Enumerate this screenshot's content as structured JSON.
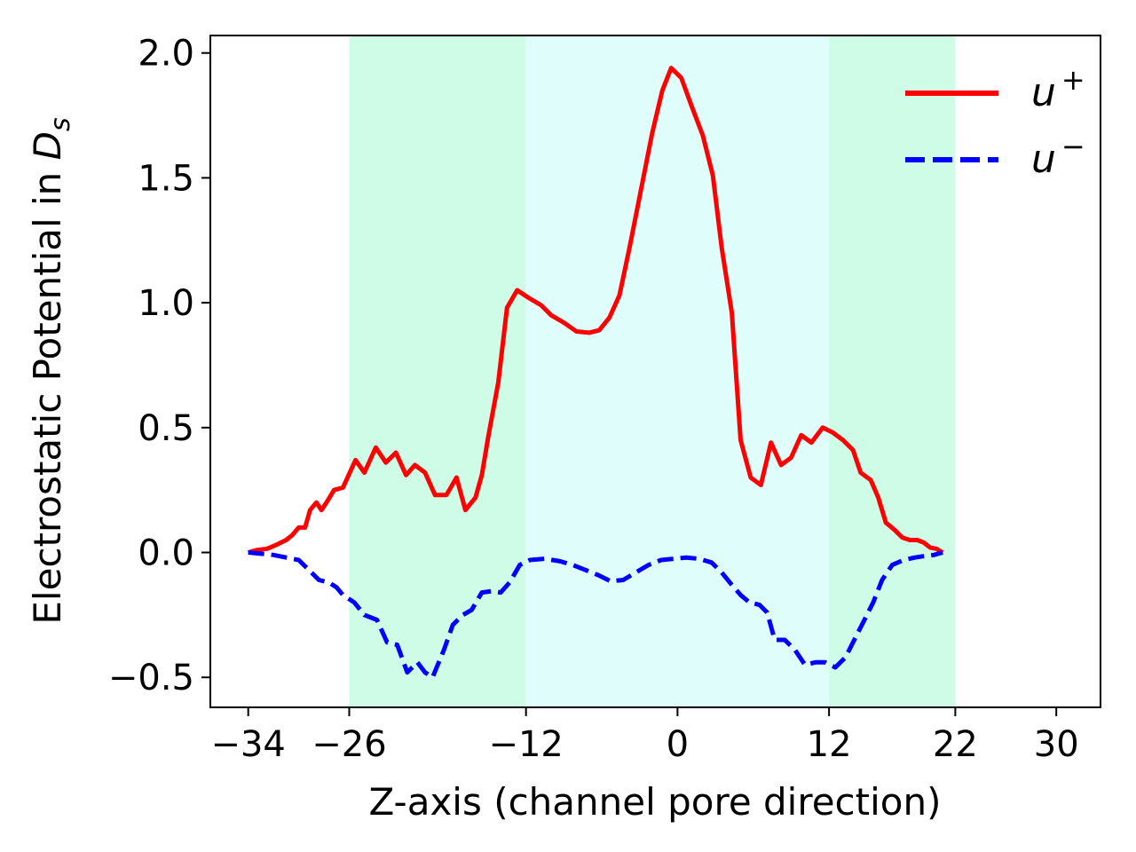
{
  "chart_data": {
    "type": "line",
    "title": "",
    "xlabel": "Z-axis (channel pore direction)",
    "ylabel_main": "Electrostatic Potential in ",
    "ylabel_symbol": "D",
    "ylabel_sub": "s",
    "xlim": [
      -37,
      33.5
    ],
    "ylim": [
      -0.62,
      2.07
    ],
    "xticks": [
      -34,
      -26,
      -12,
      0,
      12,
      22,
      30
    ],
    "xtick_labels": [
      "−34",
      "−26",
      "−12",
      "0",
      "12",
      "22",
      "30"
    ],
    "yticks": [
      -0.5,
      0.0,
      0.5,
      1.0,
      1.5,
      2.0
    ],
    "ytick_labels": [
      "−0.5",
      "0.0",
      "0.5",
      "1.0",
      "1.5",
      "2.0"
    ],
    "grid": false,
    "legend_position": "top-right",
    "regions": [
      {
        "x0": -26,
        "x1": -12,
        "color": "#cefce6"
      },
      {
        "x0": -12,
        "x1": 12,
        "color": "#dffefb"
      },
      {
        "x0": 12,
        "x1": 22,
        "color": "#cefce6"
      }
    ],
    "series": [
      {
        "name_base": "u",
        "name_sup": "+",
        "color": "#ff0000",
        "dash": "solid",
        "points": [
          [
            -34,
            0.0
          ],
          [
            -33.3,
            0.01
          ],
          [
            -32.5,
            0.015
          ],
          [
            -31.8,
            0.03
          ],
          [
            -31,
            0.05
          ],
          [
            -30.5,
            0.07
          ],
          [
            -30,
            0.1
          ],
          [
            -29.5,
            0.1
          ],
          [
            -29.1,
            0.17
          ],
          [
            -28.6,
            0.2
          ],
          [
            -28.2,
            0.17
          ],
          [
            -27.8,
            0.2
          ],
          [
            -27.2,
            0.25
          ],
          [
            -26.5,
            0.26
          ],
          [
            -25.5,
            0.37
          ],
          [
            -24.8,
            0.32
          ],
          [
            -23.9,
            0.42
          ],
          [
            -23.1,
            0.36
          ],
          [
            -22.3,
            0.4
          ],
          [
            -21.5,
            0.31
          ],
          [
            -20.8,
            0.35
          ],
          [
            -20,
            0.32
          ],
          [
            -19.2,
            0.23
          ],
          [
            -18.3,
            0.23
          ],
          [
            -17.5,
            0.3
          ],
          [
            -16.8,
            0.17
          ],
          [
            -16,
            0.22
          ],
          [
            -15.5,
            0.31
          ],
          [
            -15,
            0.46
          ],
          [
            -14.2,
            0.68
          ],
          [
            -13.5,
            0.98
          ],
          [
            -12.7,
            1.05
          ],
          [
            -11.8,
            1.02
          ],
          [
            -10.8,
            0.99
          ],
          [
            -10,
            0.95
          ],
          [
            -9,
            0.92
          ],
          [
            -8,
            0.885
          ],
          [
            -7,
            0.88
          ],
          [
            -6.2,
            0.89
          ],
          [
            -5.4,
            0.94
          ],
          [
            -4.6,
            1.03
          ],
          [
            -3.8,
            1.22
          ],
          [
            -2.9,
            1.45
          ],
          [
            -2,
            1.68
          ],
          [
            -1.2,
            1.85
          ],
          [
            -0.5,
            1.94
          ],
          [
            0.3,
            1.9
          ],
          [
            1.1,
            1.79
          ],
          [
            2,
            1.67
          ],
          [
            2.8,
            1.51
          ],
          [
            3.5,
            1.22
          ],
          [
            4.3,
            0.96
          ],
          [
            5,
            0.45
          ],
          [
            5.8,
            0.3
          ],
          [
            6.6,
            0.27
          ],
          [
            7.4,
            0.44
          ],
          [
            8.2,
            0.35
          ],
          [
            9,
            0.38
          ],
          [
            9.8,
            0.47
          ],
          [
            10.6,
            0.44
          ],
          [
            11.5,
            0.5
          ],
          [
            12.3,
            0.48
          ],
          [
            13.1,
            0.45
          ],
          [
            13.9,
            0.41
          ],
          [
            14.5,
            0.32
          ],
          [
            15.3,
            0.29
          ],
          [
            15.9,
            0.22
          ],
          [
            16.5,
            0.12
          ],
          [
            17.2,
            0.09
          ],
          [
            17.8,
            0.06
          ],
          [
            18.4,
            0.05
          ],
          [
            19,
            0.05
          ],
          [
            19.5,
            0.04
          ],
          [
            20,
            0.02
          ],
          [
            20.5,
            0.015
          ],
          [
            21,
            0.0
          ]
        ]
      },
      {
        "name_base": "u",
        "name_sup": "−",
        "color": "#0000ff",
        "dash": "dashed",
        "points": [
          [
            -34,
            0.0
          ],
          [
            -33,
            -0.005
          ],
          [
            -32,
            -0.01
          ],
          [
            -31,
            -0.02
          ],
          [
            -30,
            -0.03
          ],
          [
            -29.2,
            -0.07
          ],
          [
            -28.4,
            -0.11
          ],
          [
            -27.6,
            -0.12
          ],
          [
            -27,
            -0.14
          ],
          [
            -26.5,
            -0.17
          ],
          [
            -25.6,
            -0.2
          ],
          [
            -24.8,
            -0.25
          ],
          [
            -23.8,
            -0.27
          ],
          [
            -23,
            -0.36
          ],
          [
            -22.2,
            -0.37
          ],
          [
            -21.4,
            -0.48
          ],
          [
            -20.6,
            -0.44
          ],
          [
            -20,
            -0.48
          ],
          [
            -19.4,
            -0.5
          ],
          [
            -18.5,
            -0.39
          ],
          [
            -17.8,
            -0.29
          ],
          [
            -17,
            -0.25
          ],
          [
            -16.3,
            -0.23
          ],
          [
            -15.5,
            -0.16
          ],
          [
            -14.7,
            -0.155
          ],
          [
            -14,
            -0.16
          ],
          [
            -13.3,
            -0.12
          ],
          [
            -12.5,
            -0.05
          ],
          [
            -11.7,
            -0.03
          ],
          [
            -10.5,
            -0.025
          ],
          [
            -9.3,
            -0.035
          ],
          [
            -8.3,
            -0.05
          ],
          [
            -7.3,
            -0.07
          ],
          [
            -6.3,
            -0.09
          ],
          [
            -5.3,
            -0.115
          ],
          [
            -4.3,
            -0.11
          ],
          [
            -3.3,
            -0.08
          ],
          [
            -2.3,
            -0.05
          ],
          [
            -1.3,
            -0.03
          ],
          [
            -0.3,
            -0.025
          ],
          [
            0.7,
            -0.02
          ],
          [
            1.7,
            -0.025
          ],
          [
            2.7,
            -0.04
          ],
          [
            3.5,
            -0.08
          ],
          [
            4.3,
            -0.13
          ],
          [
            5,
            -0.17
          ],
          [
            5.7,
            -0.2
          ],
          [
            6.5,
            -0.21
          ],
          [
            7.1,
            -0.24
          ],
          [
            7.7,
            -0.35
          ],
          [
            8.5,
            -0.35
          ],
          [
            9.3,
            -0.39
          ],
          [
            10.1,
            -0.45
          ],
          [
            10.9,
            -0.44
          ],
          [
            11.7,
            -0.44
          ],
          [
            12.5,
            -0.46
          ],
          [
            13.3,
            -0.42
          ],
          [
            14,
            -0.35
          ],
          [
            14.8,
            -0.27
          ],
          [
            15.5,
            -0.2
          ],
          [
            16.2,
            -0.11
          ],
          [
            17,
            -0.05
          ],
          [
            17.9,
            -0.03
          ],
          [
            18.8,
            -0.02
          ],
          [
            19.5,
            -0.015
          ],
          [
            20.3,
            -0.01
          ],
          [
            21,
            0.0
          ]
        ]
      }
    ]
  }
}
